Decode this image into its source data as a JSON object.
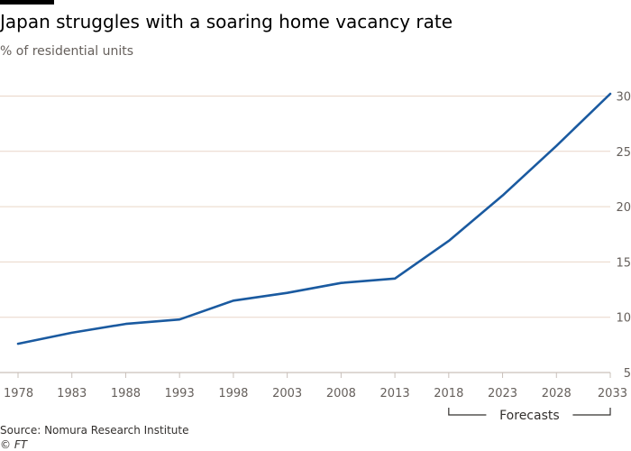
{
  "title": "Japan struggles with a soaring home vacancy rate",
  "subtitle": "% of residential units",
  "source": "Source: Nomura Research Institute",
  "copyright": "© FT",
  "colors": {
    "line": "#1a5aa0",
    "grid": "#e9d6c8",
    "baseline": "#c9c0ba",
    "text": "#33302e",
    "axis_text": "#66605c"
  },
  "chart_data": {
    "type": "line",
    "title": "Japan struggles with a soaring home vacancy rate",
    "ylabel": "% of residential units",
    "xlabel": "",
    "x": [
      1978,
      1983,
      1988,
      1993,
      1998,
      2003,
      2008,
      2013,
      2018,
      2023,
      2028,
      2033
    ],
    "series": [
      {
        "name": "",
        "values": [
          7.6,
          8.6,
          9.4,
          9.8,
          11.5,
          12.2,
          13.1,
          13.5,
          16.9,
          21.0,
          25.5,
          30.2
        ]
      }
    ],
    "x_ticks": [
      "1978",
      "1983",
      "1988",
      "1993",
      "1998",
      "2003",
      "2008",
      "2013",
      "2018",
      "2023",
      "2028",
      "2033"
    ],
    "y_ticks": [
      "5",
      "10",
      "15",
      "20",
      "25",
      "30"
    ],
    "xlim": [
      1978,
      2033
    ],
    "ylim": [
      5,
      30
    ],
    "grid": "horizontal",
    "y_axis_position": "right",
    "annotation": {
      "label": "Forecasts",
      "x_range": [
        2018,
        2033
      ]
    }
  }
}
